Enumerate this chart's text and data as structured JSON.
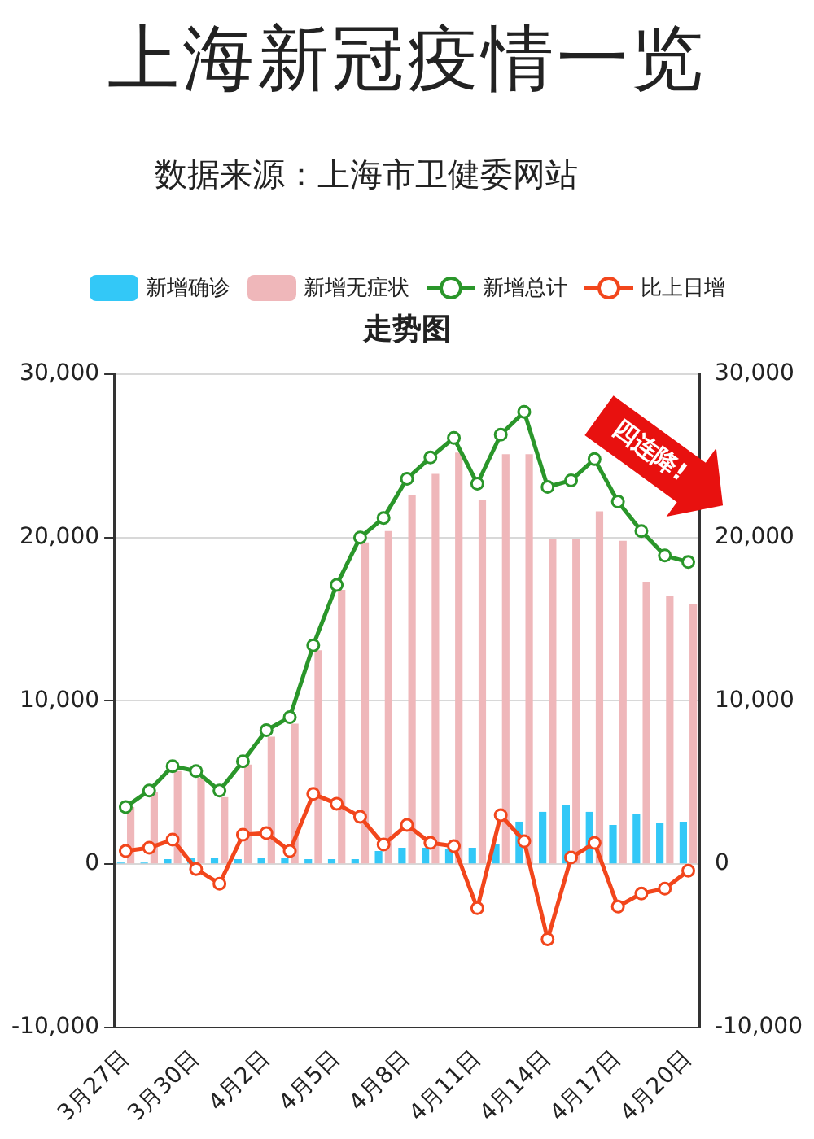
{
  "chart_data": {
    "type": "bar",
    "title": "上海新冠疫情一览",
    "subtitle": "数据来源：上海市卫健委网站",
    "annotations": [
      "走势图",
      "四连降!"
    ],
    "categories": [
      "3月27日",
      null,
      null,
      "3月30日",
      null,
      null,
      "4月2日",
      null,
      null,
      "4月5日",
      null,
      null,
      "4月8日",
      null,
      null,
      "4月11日",
      null,
      null,
      "4月14日",
      null,
      null,
      "4月17日",
      null,
      null,
      "4月20日"
    ],
    "series": [
      {
        "name": "新增确诊",
        "color": "#33c8f7",
        "values": [
          100,
          100,
          300,
          400,
          400,
          300,
          400,
          400,
          300,
          300,
          300,
          800,
          1000,
          1000,
          900,
          1000,
          1200,
          2600,
          3200,
          3600,
          3200,
          2400,
          3100,
          2500,
          2600
        ]
      },
      {
        "name": "新增无症状",
        "color": "#efb7ba",
        "values": [
          3500,
          4400,
          5700,
          5300,
          4100,
          6100,
          7800,
          8600,
          13100,
          16800,
          19700,
          20400,
          22600,
          23900,
          25200,
          22300,
          25100,
          25100,
          19900,
          19900,
          21600,
          19800,
          17300,
          16400,
          15900
        ]
      },
      {
        "name": "新增总计",
        "type": "line",
        "color": "#2a962a",
        "values": [
          3500,
          4500,
          6000,
          5700,
          4500,
          6300,
          8200,
          9000,
          13400,
          17100,
          20000,
          21200,
          23600,
          24900,
          26100,
          23300,
          26300,
          27700,
          23100,
          23500,
          24800,
          22200,
          20400,
          18900,
          18500
        ]
      },
      {
        "name": "比上日增",
        "type": "line",
        "color": "#f2461c",
        "values": [
          800,
          1000,
          1500,
          -300,
          -1200,
          1800,
          1900,
          800,
          4300,
          3700,
          2900,
          1200,
          2400,
          1300,
          1100,
          -2700,
          3000,
          1400,
          -4600,
          400,
          1300,
          -2600,
          -1800,
          -1500,
          -400
        ]
      }
    ],
    "ylim": [
      -10000,
      30000
    ],
    "yticks": [
      {
        "value": -10000,
        "label": "-10,000"
      },
      {
        "value": 0,
        "label": "0"
      },
      {
        "value": 10000,
        "label": "10,000"
      },
      {
        "value": 20000,
        "label": "20,000"
      },
      {
        "value": 30000,
        "label": "30,000"
      }
    ],
    "y2lim": [
      -10000,
      30000
    ],
    "y2ticks": [
      {
        "value": -10000,
        "label": "-10,000"
      },
      {
        "value": 0,
        "label": "0"
      },
      {
        "value": 10000,
        "label": "10,000"
      },
      {
        "value": 20000,
        "label": "20,000"
      },
      {
        "value": 30000,
        "label": "30,000"
      }
    ],
    "grid": "y",
    "legend": "top",
    "marker": "circle",
    "line_style": "solid"
  }
}
